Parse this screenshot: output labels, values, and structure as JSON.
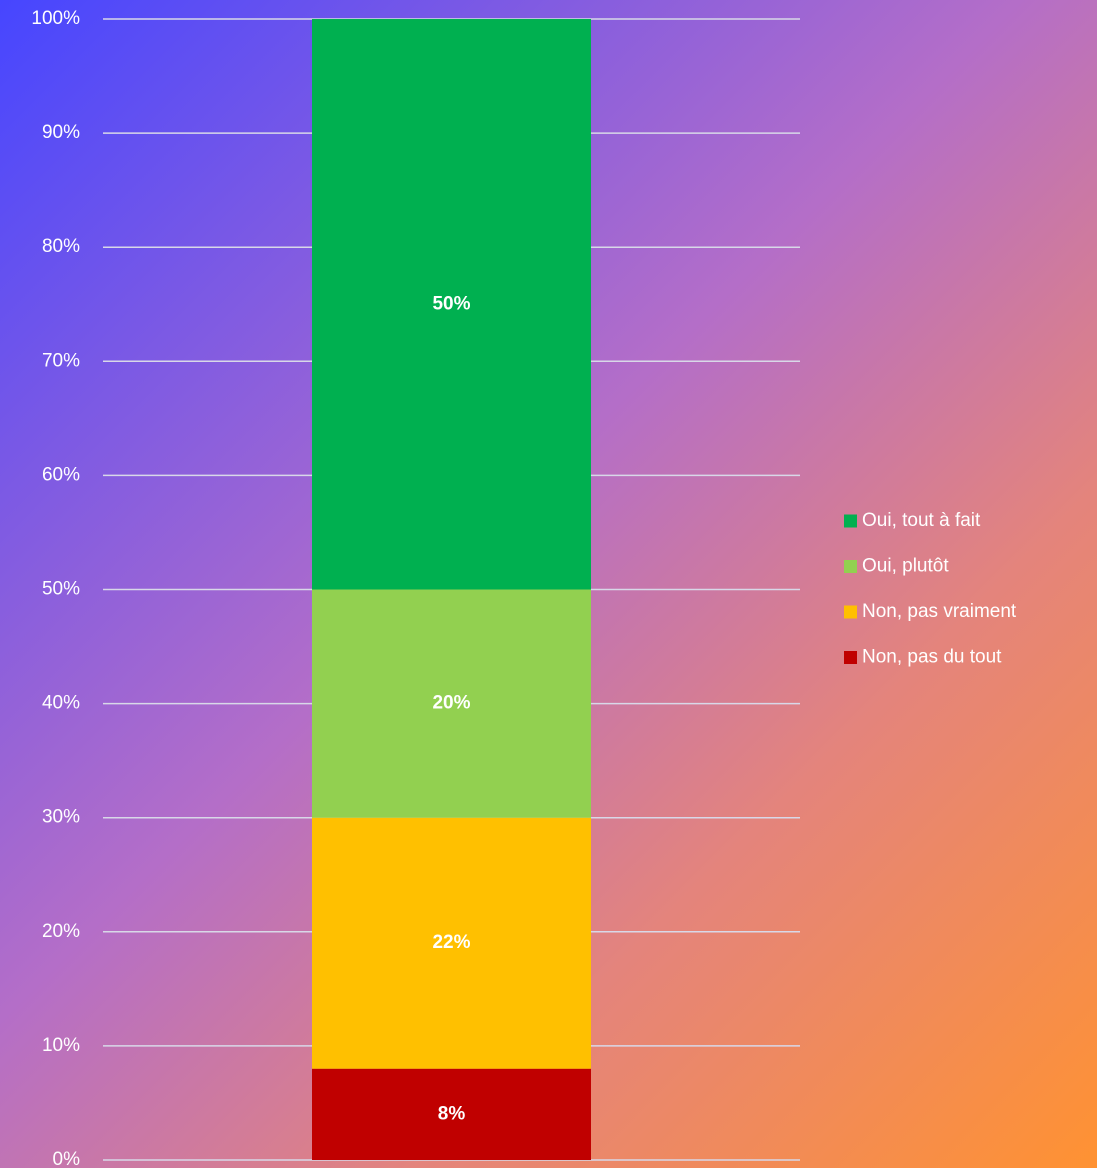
{
  "chart_data": {
    "type": "bar",
    "stacked": true,
    "categories": [
      null
    ],
    "series": [
      {
        "name": "Non, pas du tout",
        "color": "#c00000",
        "values": [
          8
        ],
        "value_labels": [
          "8%"
        ]
      },
      {
        "name": "Non, pas vraiment",
        "color": "#ffc000",
        "values": [
          22
        ],
        "value_labels": [
          "22%"
        ]
      },
      {
        "name": "Oui, plutôt",
        "color": "#92d050",
        "values": [
          20
        ],
        "value_labels": [
          "20%"
        ]
      },
      {
        "name": "Oui, tout à fait",
        "color": "#00b050",
        "values": [
          50
        ],
        "value_labels": [
          "50%"
        ]
      }
    ],
    "ylim": [
      0,
      100
    ],
    "yticks": [
      {
        "value": 0,
        "label": "0%"
      },
      {
        "value": 10,
        "label": "10%"
      },
      {
        "value": 20,
        "label": "20%"
      },
      {
        "value": 30,
        "label": "30%"
      },
      {
        "value": 40,
        "label": "40%"
      },
      {
        "value": 50,
        "label": "50%"
      },
      {
        "value": 60,
        "label": "60%"
      },
      {
        "value": 70,
        "label": "70%"
      },
      {
        "value": 80,
        "label": "80%"
      },
      {
        "value": 90,
        "label": "90%"
      },
      {
        "value": 100,
        "label": "100%"
      }
    ],
    "grid": true,
    "legend": "right"
  }
}
